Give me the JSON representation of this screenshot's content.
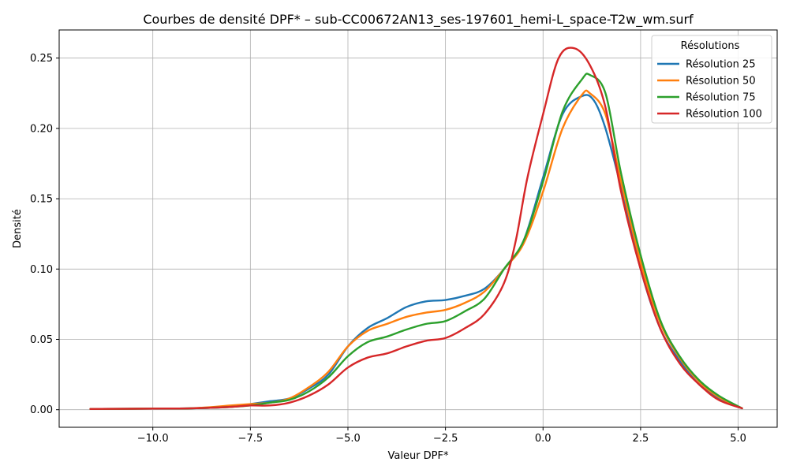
{
  "chart_data": {
    "type": "line",
    "title": "Courbes de densité DPF* – sub-CC00672AN13_ses-197601_hemi-L_space-T2w_wm.surf",
    "xlabel": "Valeur DPF*",
    "ylabel": "Densité",
    "xlim": [
      -12.4,
      6.0
    ],
    "ylim": [
      -0.0125,
      0.27
    ],
    "xticks": [
      -10.0,
      -7.5,
      -5.0,
      -2.5,
      0.0,
      2.5,
      5.0
    ],
    "xtick_labels": [
      "−10.0",
      "−7.5",
      "−5.0",
      "−2.5",
      "0.0",
      "2.5",
      "5.0"
    ],
    "yticks": [
      0.0,
      0.05,
      0.1,
      0.15,
      0.2,
      0.25
    ],
    "ytick_labels": [
      "0.00",
      "0.05",
      "0.10",
      "0.15",
      "0.20",
      "0.25"
    ],
    "grid": true,
    "legend": {
      "title": "Résolutions",
      "placement": "top-right"
    },
    "series": [
      {
        "name": "Résolution 25",
        "color": "#1f77b4",
        "x": [
          -11.6,
          -10,
          -9,
          -8,
          -7.5,
          -7,
          -6.5,
          -6,
          -5.5,
          -5,
          -4.5,
          -4,
          -3.5,
          -3,
          -2.5,
          -2,
          -1.5,
          -1,
          -0.5,
          0,
          0.5,
          1,
          1.3,
          1.6,
          2,
          2.5,
          3,
          3.5,
          4,
          4.5,
          5.1
        ],
        "y": [
          0.0005,
          0.0008,
          0.001,
          0.002,
          0.004,
          0.006,
          0.008,
          0.015,
          0.025,
          0.045,
          0.058,
          0.065,
          0.073,
          0.077,
          0.078,
          0.081,
          0.086,
          0.1,
          0.12,
          0.165,
          0.21,
          0.223,
          0.22,
          0.2,
          0.158,
          0.1,
          0.058,
          0.035,
          0.018,
          0.008,
          0.001
        ]
      },
      {
        "name": "Résolution 50",
        "color": "#ff7f0e",
        "x": [
          -11.6,
          -10,
          -9,
          -8,
          -7.5,
          -7,
          -6.5,
          -6,
          -5.5,
          -5,
          -4.5,
          -4,
          -3.5,
          -3,
          -2.5,
          -2,
          -1.5,
          -1,
          -0.5,
          0,
          0.5,
          1,
          1.2,
          1.6,
          2,
          2.5,
          3,
          3.5,
          4,
          4.5,
          5.1
        ],
        "y": [
          0.0005,
          0.0008,
          0.001,
          0.003,
          0.004,
          0.005,
          0.008,
          0.016,
          0.027,
          0.045,
          0.056,
          0.061,
          0.066,
          0.069,
          0.071,
          0.076,
          0.084,
          0.1,
          0.118,
          0.155,
          0.2,
          0.224,
          0.225,
          0.21,
          0.162,
          0.105,
          0.062,
          0.037,
          0.02,
          0.009,
          0.001
        ]
      },
      {
        "name": "Résolution 75",
        "color": "#2ca02c",
        "x": [
          -11.6,
          -10,
          -9,
          -8,
          -7.5,
          -7,
          -6.5,
          -6,
          -5.5,
          -5,
          -4.5,
          -4,
          -3.5,
          -3,
          -2.5,
          -2,
          -1.5,
          -1,
          -0.5,
          0,
          0.5,
          1,
          1.2,
          1.6,
          2,
          2.5,
          3,
          3.5,
          4,
          4.5,
          5.1
        ],
        "y": [
          0.0005,
          0.0008,
          0.001,
          0.002,
          0.003,
          0.005,
          0.007,
          0.013,
          0.023,
          0.038,
          0.048,
          0.052,
          0.057,
          0.061,
          0.063,
          0.07,
          0.079,
          0.1,
          0.12,
          0.162,
          0.212,
          0.235,
          0.238,
          0.225,
          0.168,
          0.11,
          0.064,
          0.038,
          0.021,
          0.01,
          0.001
        ]
      },
      {
        "name": "Résolution 100",
        "color": "#d62728",
        "x": [
          -11.6,
          -10,
          -9,
          -8,
          -7.5,
          -7,
          -6.5,
          -6,
          -5.5,
          -5,
          -4.5,
          -4,
          -3.5,
          -3,
          -2.5,
          -2,
          -1.5,
          -1,
          -0.7,
          -0.4,
          0,
          0.4,
          0.8,
          1.2,
          1.6,
          2,
          2.5,
          3,
          3.5,
          4,
          4.5,
          5.1
        ],
        "y": [
          0.0005,
          0.0008,
          0.001,
          0.002,
          0.003,
          0.003,
          0.005,
          0.01,
          0.018,
          0.03,
          0.037,
          0.04,
          0.045,
          0.049,
          0.051,
          0.058,
          0.068,
          0.09,
          0.12,
          0.165,
          0.21,
          0.25,
          0.257,
          0.245,
          0.215,
          0.155,
          0.1,
          0.058,
          0.033,
          0.018,
          0.007,
          0.001
        ]
      }
    ]
  }
}
